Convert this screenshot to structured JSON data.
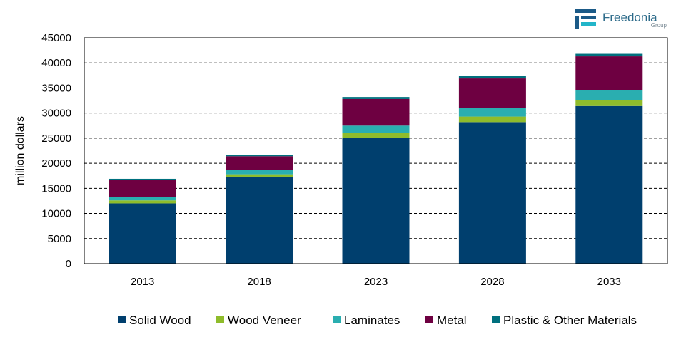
{
  "logo": {
    "name": "Freedonia",
    "sub": "Group"
  },
  "chart_data": {
    "type": "bar",
    "stacked": true,
    "categories": [
      "2013",
      "2018",
      "2023",
      "2028",
      "2033"
    ],
    "ylabel": "million dollars",
    "ylim": [
      0,
      45000
    ],
    "yticks": [
      0,
      5000,
      10000,
      15000,
      20000,
      25000,
      30000,
      35000,
      40000,
      45000
    ],
    "grid": true,
    "legend_position": "bottom",
    "series": [
      {
        "name": "Solid Wood",
        "color": "#003f6e",
        "values": [
          12000,
          17200,
          25000,
          28200,
          31400
        ]
      },
      {
        "name": "Wood Veneer",
        "color": "#8fbc2b",
        "values": [
          600,
          600,
          1000,
          1100,
          1200
        ]
      },
      {
        "name": "Laminates",
        "color": "#2aaeb0",
        "values": [
          700,
          800,
          1500,
          1700,
          1900
        ]
      },
      {
        "name": "Metal",
        "color": "#6e0041",
        "values": [
          3400,
          2800,
          5300,
          5900,
          6800
        ]
      },
      {
        "name": "Plastic & Other Materials",
        "color": "#00707e",
        "values": [
          200,
          200,
          400,
          500,
          500
        ]
      }
    ]
  }
}
